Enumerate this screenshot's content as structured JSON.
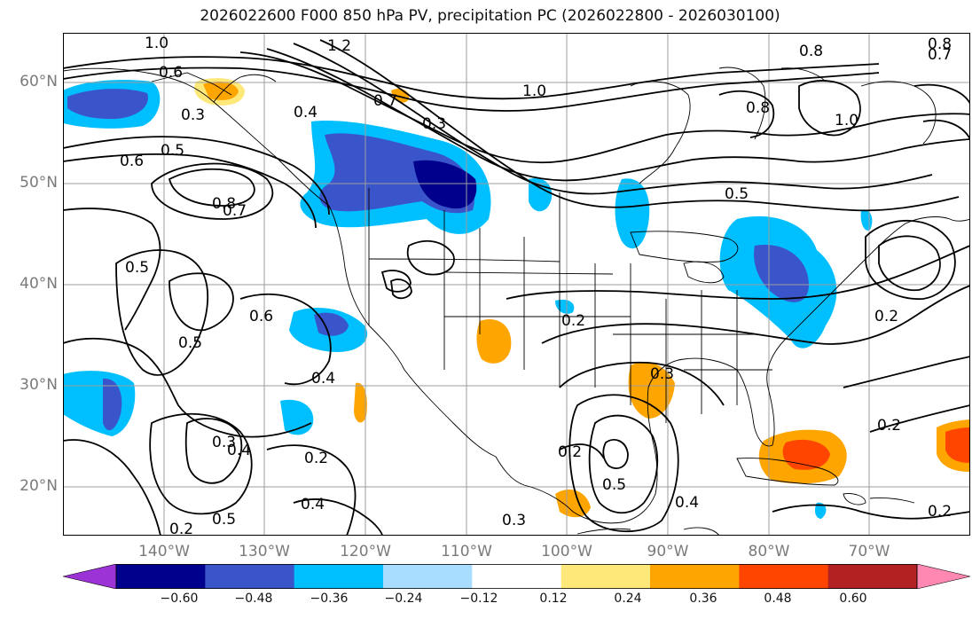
{
  "title": "2026022600 F000 850 hPa PV, precipitation PC (2026022800 - 2026030100)",
  "lat_labels": [
    "60°N",
    "50°N",
    "40°N",
    "30°N",
    "20°N"
  ],
  "lon_labels": [
    "140°W",
    "130°W",
    "120°W",
    "110°W",
    "100°W",
    "90°W",
    "80°W",
    "70°W"
  ],
  "colorbar": {
    "ticks": [
      "−0.60",
      "−0.48",
      "−0.36",
      "−0.24",
      "−0.12",
      "0.12",
      "0.24",
      "0.36",
      "0.48",
      "0.60"
    ],
    "colors": [
      "#9b33d6",
      "#00008c",
      "#3a55c9",
      "#00bfff",
      "#a9ddff",
      "#ffffff",
      "#ffe87a",
      "#ffa500",
      "#ff4500",
      "#b22222",
      "#ff88b3"
    ]
  },
  "contour_labels": [
    "1.0",
    "0.6",
    "0.3",
    "0.5",
    "0.6",
    "0.8",
    "0.7",
    "0.5",
    "0.6",
    "0.5",
    "0.4",
    "0.2",
    "0.3",
    "0.4",
    "0.5",
    "0.2",
    "0.4",
    "0.3",
    "0.2",
    "0.5",
    "0.3",
    "0.2",
    "0.7",
    "0.3",
    "1.0",
    "1.2",
    "0.4",
    "0.5",
    "1.0",
    "0.8",
    "0.8",
    "0.7",
    "0.2",
    "0.2",
    "0.2",
    "0.8",
    "0.4"
  ],
  "icons": {
    "map": "geographic-map",
    "colorbar": "colorbar-legend"
  }
}
